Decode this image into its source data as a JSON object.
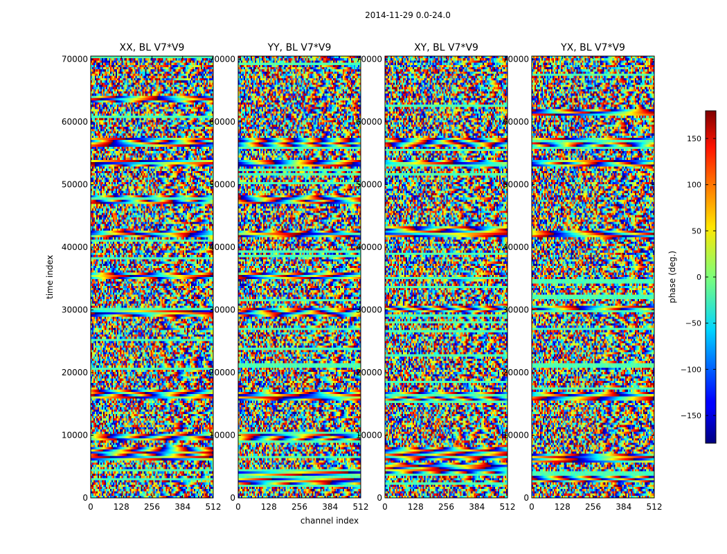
{
  "figure": {
    "suptitle": "2014-11-29 0.0-24.0",
    "ylabel": "time index",
    "xlabel": "channel index"
  },
  "chart_data": {
    "type": "heatmap",
    "description_value": "phase waterfall (time index vs channel index)",
    "ylim": [
      0,
      70500
    ],
    "xlim": [
      0,
      512
    ],
    "x_ticks": [
      0,
      128,
      256,
      384,
      512
    ],
    "y_ticks": [
      0,
      10000,
      20000,
      30000,
      40000,
      50000,
      60000,
      70000
    ],
    "panels": [
      {
        "title": "XX, BL V7*V9",
        "bands": [
          [
            6000,
            8000
          ],
          [
            9000,
            10200
          ],
          [
            16000,
            17200
          ],
          [
            29000,
            30300
          ],
          [
            34800,
            35800
          ],
          [
            41500,
            42500
          ],
          [
            47000,
            48300
          ],
          [
            53000,
            54000
          ],
          [
            56000,
            57500
          ],
          [
            63000,
            64000
          ]
        ]
      },
      {
        "title": "YY, BL V7*V9",
        "bands": [
          [
            2000,
            4500
          ],
          [
            9000,
            10200
          ],
          [
            15500,
            17000
          ],
          [
            29000,
            30300
          ],
          [
            34800,
            35800
          ],
          [
            41500,
            42500
          ],
          [
            47000,
            48300
          ],
          [
            53000,
            54000
          ],
          [
            56000,
            57500
          ]
        ]
      },
      {
        "title": "XY, BL V7*V9",
        "bands": [
          [
            3500,
            5500
          ],
          [
            6000,
            8000
          ],
          [
            15500,
            17000
          ],
          [
            29500,
            30500
          ],
          [
            41500,
            42500
          ],
          [
            42800,
            43500
          ],
          [
            53000,
            54000
          ],
          [
            56000,
            57500
          ]
        ]
      },
      {
        "title": "YX, BL V7*V9",
        "bands": [
          [
            2500,
            4000
          ],
          [
            5500,
            7000
          ],
          [
            15500,
            17000
          ],
          [
            29500,
            30500
          ],
          [
            41500,
            42500
          ],
          [
            53000,
            54000
          ],
          [
            56000,
            57500
          ],
          [
            61000,
            62000
          ]
        ]
      }
    ],
    "colorbar": {
      "label": "phase (deg.)",
      "range": [
        -180,
        180
      ],
      "ticks": [
        -150,
        -100,
        -50,
        0,
        50,
        100,
        150
      ],
      "colormap": "jet"
    }
  }
}
